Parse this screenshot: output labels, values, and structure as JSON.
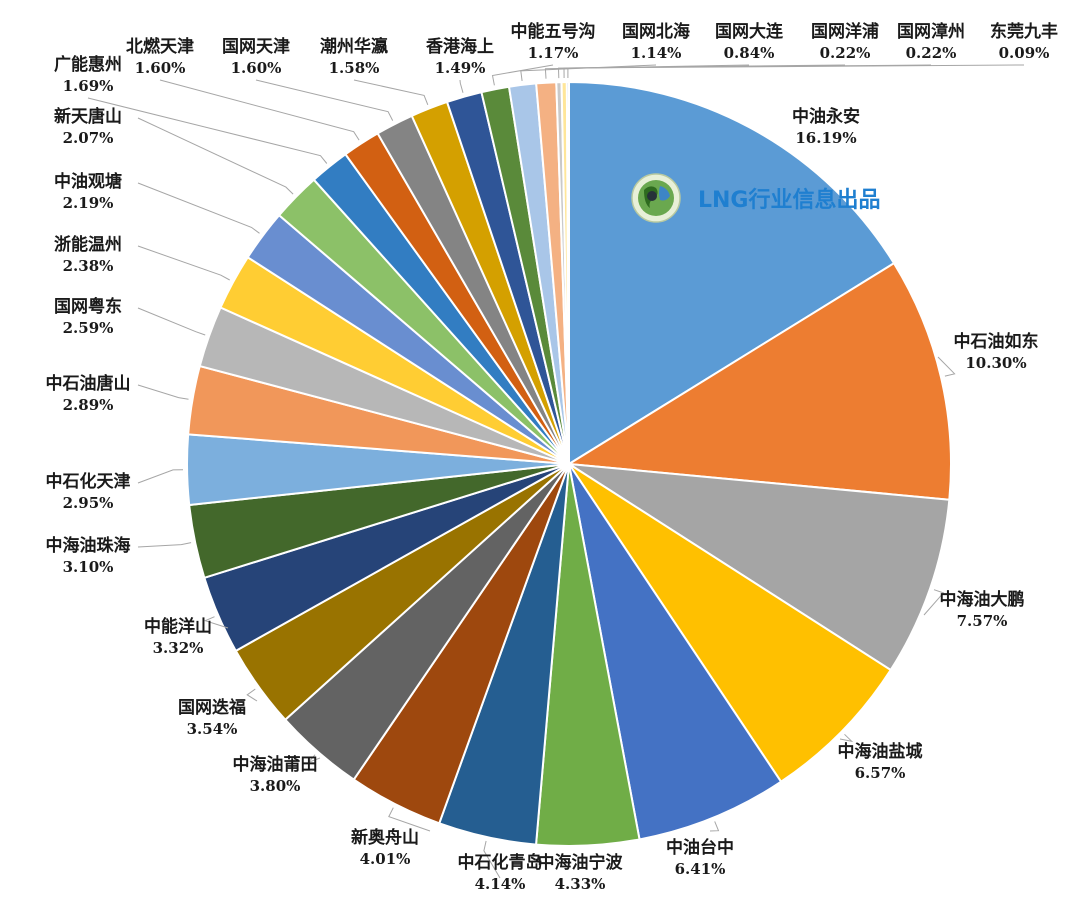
{
  "chart_data": {
    "type": "pie",
    "categories": [
      "中油永安",
      "中石油如东",
      "中海油大鹏",
      "中海油盐城",
      "中油台中",
      "中海油宁波",
      "中石化青岛",
      "新奥舟山",
      "中海油莆田",
      "国网迭福",
      "中能洋山",
      "中海油珠海",
      "中石化天津",
      "中石油唐山",
      "国网粤东",
      "浙能温州",
      "中油观塘",
      "新天唐山",
      "广能惠州",
      "北燃天津",
      "国网天津",
      "潮州华瀛",
      "香港海上",
      "中能五号沟",
      "国网北海",
      "国网大连",
      "国网洋浦",
      "国网漳州",
      "东莞九丰"
    ],
    "values": [
      16.19,
      10.3,
      7.57,
      6.57,
      6.41,
      4.33,
      4.14,
      4.01,
      3.8,
      3.54,
      3.32,
      3.1,
      2.95,
      2.89,
      2.59,
      2.38,
      2.19,
      2.07,
      1.69,
      1.6,
      1.6,
      1.58,
      1.49,
      1.17,
      1.14,
      0.84,
      0.22,
      0.22,
      0.09
    ],
    "labels": [
      "16.19%",
      "10.30%",
      "7.57%",
      "6.57%",
      "6.41%",
      "4.33%",
      "4.14%",
      "4.01%",
      "3.80%",
      "3.54%",
      "3.32%",
      "3.10%",
      "2.95%",
      "2.89%",
      "2.59%",
      "2.38%",
      "2.19%",
      "2.07%",
      "1.69%",
      "1.60%",
      "1.60%",
      "1.58%",
      "1.49%",
      "1.17%",
      "1.14%",
      "0.84%",
      "0.22%",
      "0.22%",
      "0.09%"
    ],
    "colors": [
      "#5b9bd5",
      "#ed7d31",
      "#a5a5a5",
      "#ffc000",
      "#4472c4",
      "#70ad47",
      "#255e91",
      "#9e480e",
      "#636363",
      "#997300",
      "#264478",
      "#43682b",
      "#7cafdd",
      "#f1975a",
      "#b7b7b7",
      "#ffcd33",
      "#698ed0",
      "#8cc168",
      "#327dc2",
      "#d26012",
      "#848484",
      "#d4a000",
      "#2f5597",
      "#5a8a3a",
      "#a9c6e8",
      "#f4b183",
      "#c9c9c9",
      "#ffe699",
      "#8faadc"
    ],
    "start_angle_deg": 0,
    "direction": "clockwise",
    "legend": "none",
    "title": ""
  },
  "watermark": {
    "text": "LNG行业信息出品"
  }
}
